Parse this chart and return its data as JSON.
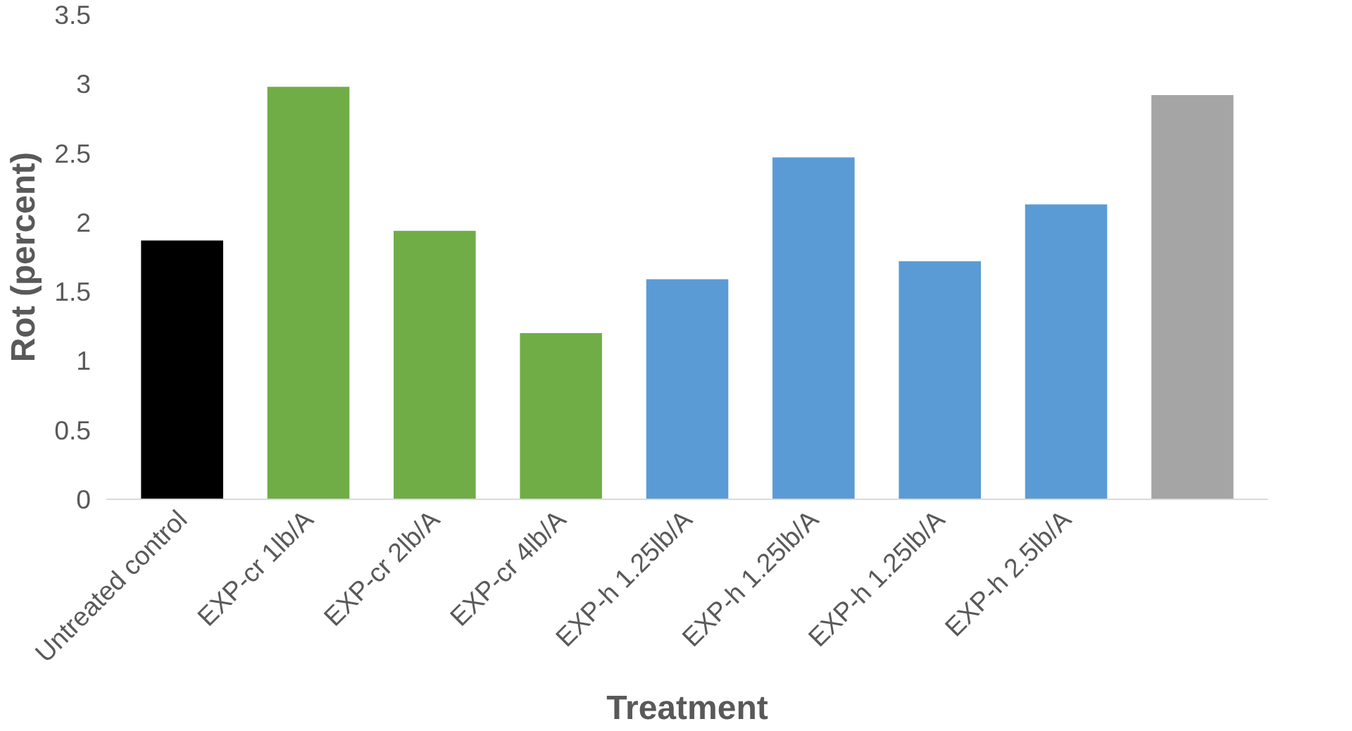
{
  "chart_data": {
    "type": "bar",
    "xlabel": "Treatment",
    "ylabel": "Rot (percent)",
    "categories": [
      "Untreated control",
      "EXP-cr 1lb/A",
      "EXP-cr 2lb/A",
      "EXP-cr 4lb/A",
      "EXP-h 1.25lb/A",
      "EXP-h 1.25lb/A",
      "EXP-h 1.25lb/A",
      "EXP-h 2.5lb/A",
      null
    ],
    "values": [
      1.87,
      2.98,
      1.94,
      1.2,
      1.59,
      2.47,
      1.72,
      2.13,
      2.92
    ],
    "colors": [
      "#000000",
      "#70ad47",
      "#70ad47",
      "#70ad47",
      "#5b9bd5",
      "#5b9bd5",
      "#5b9bd5",
      "#5b9bd5",
      "#a5a5a5"
    ],
    "ylim": [
      0,
      3.5
    ],
    "yticks": [
      0,
      0.5,
      1,
      1.5,
      2,
      2.5,
      3,
      3.5
    ],
    "grid": false
  }
}
